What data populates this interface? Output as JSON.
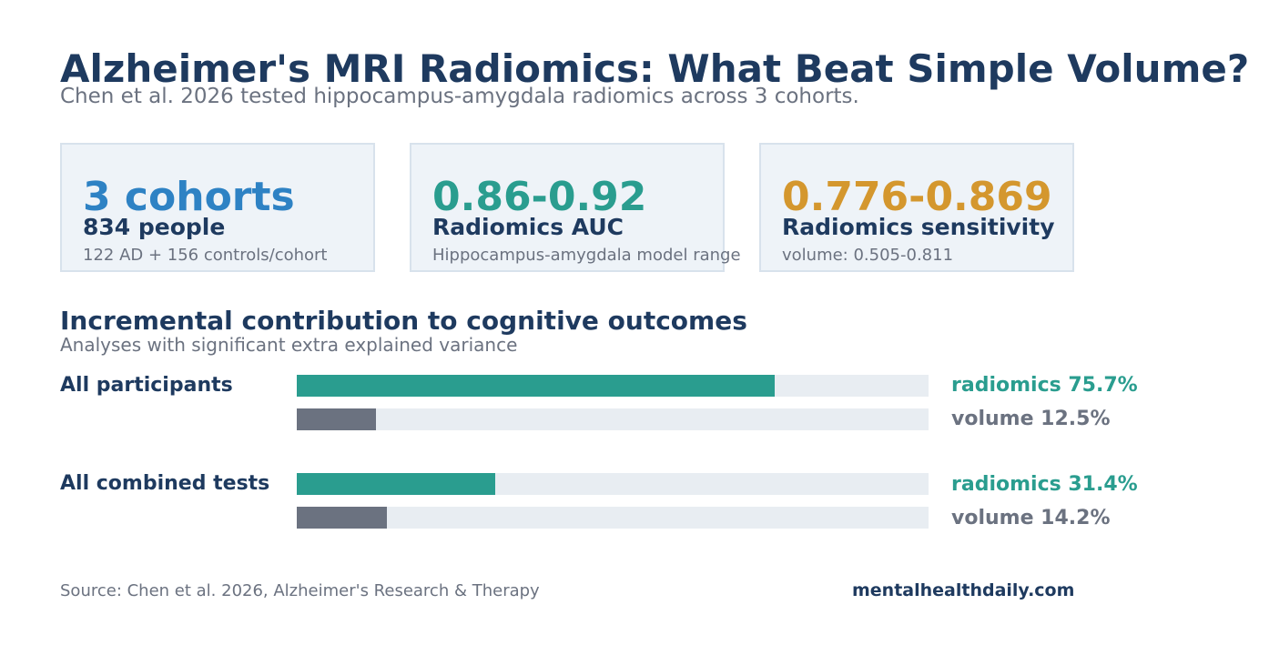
{
  "header": {
    "title": "Alzheimer's MRI Radiomics: What Beat Simple Volume?",
    "subtitle": "Chen et al. 2026 tested hippocampus-amygdala radiomics across 3 cohorts."
  },
  "cards": [
    {
      "value": "3 cohorts",
      "label": "834 people",
      "note": "122 AD + 156 controls/cohort",
      "color": "#2e82c4"
    },
    {
      "value": "0.86-0.92",
      "label": "Radiomics AUC",
      "note": "Hippocampus-amygdala model range",
      "color": "#2a9d8f"
    },
    {
      "value": "0.776-0.869",
      "label": "Radiomics sensitivity",
      "note": "volume: 0.505-0.811",
      "color": "#d4972e"
    }
  ],
  "section": {
    "title": "Incremental contribution to cognitive outcomes",
    "subtitle": "Analyses with significant extra explained variance"
  },
  "chart_data": {
    "type": "bar",
    "orientation": "horizontal",
    "xlim": [
      0,
      100
    ],
    "unit": "%",
    "groups": [
      {
        "label": "All participants",
        "bars": [
          {
            "series": "radiomics",
            "value": 75.7,
            "display": "radiomics 75.7%"
          },
          {
            "series": "volume",
            "value": 12.5,
            "display": "volume 12.5%"
          }
        ]
      },
      {
        "label": "All combined tests",
        "bars": [
          {
            "series": "radiomics",
            "value": 31.4,
            "display": "radiomics 31.4%"
          },
          {
            "series": "volume",
            "value": 14.2,
            "display": "volume 14.2%"
          }
        ]
      }
    ],
    "series_colors": {
      "radiomics": "#2a9d8f",
      "volume": "#6b7280"
    },
    "track_color": "#e8edf2"
  },
  "footer": {
    "source": "Source: Chen et al. 2026, Alzheimer's Research & Therapy",
    "brand": "mentalhealthdaily.com"
  }
}
